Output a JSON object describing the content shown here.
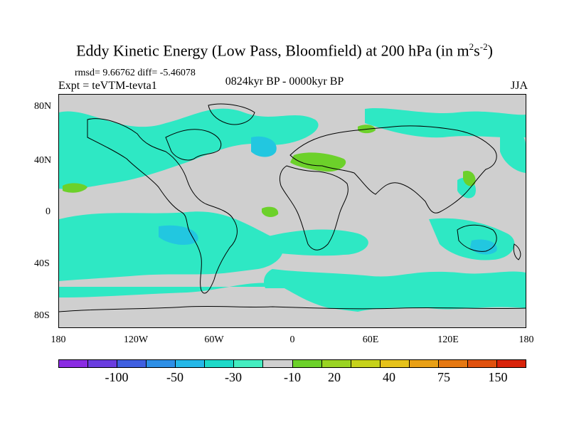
{
  "title": {
    "main": "Eddy Kinetic Energy (Low Pass, Bloomfield) at 200 hPa (in m",
    "sup1": "2",
    "mid": "s",
    "sup2": "-2",
    "end": ")"
  },
  "stats": "rmsd= 9.66762 diff= -5.46078",
  "experiment": "Expt = teVTM-tevta1",
  "period": "0824kyr BP - 0000kyr BP",
  "season": "JJA",
  "lat_labels": [
    "80N",
    "40N",
    "0",
    "40S",
    "80S"
  ],
  "lon_labels": [
    "180",
    "120W",
    "60W",
    "0",
    "60E",
    "120E",
    "180"
  ],
  "colorbar": {
    "colors": [
      "#8a2be2",
      "#6a3ddf",
      "#3f5fe0",
      "#2d8fe6",
      "#25b8e8",
      "#1dd9c8",
      "#44edc0",
      "#cfcfcf",
      "#6cd12a",
      "#9ad423",
      "#c6d21b",
      "#e6c21a",
      "#e9a016",
      "#e57812",
      "#e0510e",
      "#d8230a"
    ],
    "labels": [
      "-100",
      "-50",
      "-30",
      "-10",
      "20",
      "40",
      "75",
      "150"
    ]
  },
  "map_colors": {
    "land_ocean_base": "#cfcfcf",
    "neg_light": "#2ee8c4",
    "neg_mid": "#22c7e0",
    "pos_light": "#6cd12a"
  }
}
